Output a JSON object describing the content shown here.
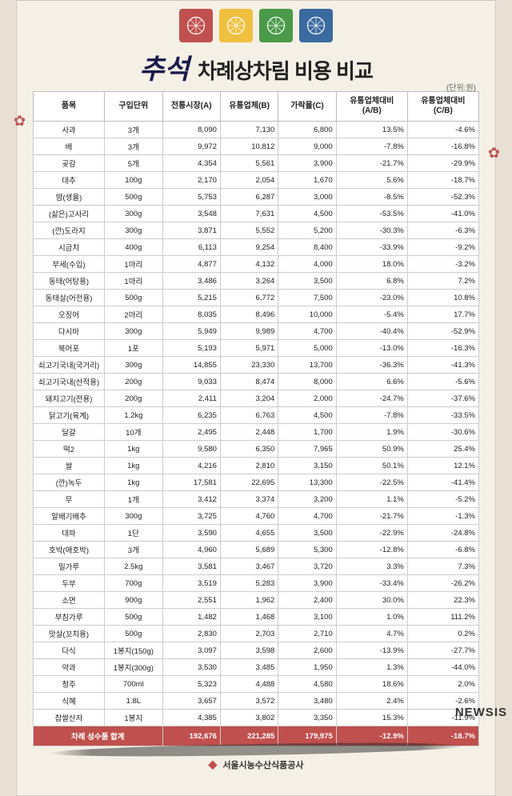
{
  "title_brush": "추석",
  "title_main": "차례상차림 비용 비교",
  "unit_note": "(단위:원)",
  "deco_colors": [
    "#c0504d",
    "#f0c040",
    "#4a9a4a",
    "#3a6aa0"
  ],
  "columns": [
    "품목",
    "구입단위",
    "전통시장(A)",
    "유통업체(B)",
    "가락몰(C)",
    "유통업체대비\n(A/B)",
    "유통업체대비\n(C/B)"
  ],
  "rows": [
    [
      "사과",
      "3개",
      "8,090",
      "7,130",
      "6,800",
      "13.5%",
      "-4.6%"
    ],
    [
      "배",
      "3개",
      "9,972",
      "10,812",
      "9,000",
      "-7.8%",
      "-16.8%"
    ],
    [
      "곶감",
      "5개",
      "4,354",
      "5,561",
      "3,900",
      "-21.7%",
      "-29.9%"
    ],
    [
      "대추",
      "100g",
      "2,170",
      "2,054",
      "1,670",
      "5.6%",
      "-18.7%"
    ],
    [
      "밤(생율)",
      "500g",
      "5,753",
      "6,287",
      "3,000",
      "-8.5%",
      "-52.3%"
    ],
    [
      "(삶은)고사리",
      "300g",
      "3,548",
      "7,631",
      "4,500",
      "-53.5%",
      "-41.0%"
    ],
    [
      "(깐)도라지",
      "300g",
      "3,871",
      "5,552",
      "5,200",
      "-30.3%",
      "-6.3%"
    ],
    [
      "시금치",
      "400g",
      "6,113",
      "9,254",
      "8,400",
      "-33.9%",
      "-9.2%"
    ],
    [
      "부세(수입)",
      "1마리",
      "4,877",
      "4,132",
      "4,000",
      "18.0%",
      "-3.2%"
    ],
    [
      "동태(어탕용)",
      "1마리",
      "3,486",
      "3,264",
      "3,500",
      "6.8%",
      "7.2%"
    ],
    [
      "동태살(어전용)",
      "500g",
      "5,215",
      "6,772",
      "7,500",
      "-23.0%",
      "10.8%"
    ],
    [
      "오징어",
      "2마리",
      "8,035",
      "8,496",
      "10,000",
      "-5.4%",
      "17.7%"
    ],
    [
      "다시마",
      "300g",
      "5,949",
      "9,989",
      "4,700",
      "-40.4%",
      "-52.9%"
    ],
    [
      "북어포",
      "1포",
      "5,193",
      "5,971",
      "5,000",
      "-13.0%",
      "-16.3%"
    ],
    [
      "쇠고기국내(국거리)",
      "300g",
      "14,855",
      "23,330",
      "13,700",
      "-36.3%",
      "-41.3%"
    ],
    [
      "쇠고기국내(산적용)",
      "200g",
      "9,033",
      "8,474",
      "8,000",
      "6.6%",
      "-5.6%"
    ],
    [
      "돼지고기(전용)",
      "200g",
      "2,411",
      "3,204",
      "2,000",
      "-24.7%",
      "-37.6%"
    ],
    [
      "닭고기(육계)",
      "1.2kg",
      "6,235",
      "6,763",
      "4,500",
      "-7.8%",
      "-33.5%"
    ],
    [
      "달걀",
      "10개",
      "2,495",
      "2,448",
      "1,700",
      "1.9%",
      "-30.6%"
    ],
    [
      "떡2",
      "1kg",
      "9,580",
      "6,350",
      "7,965",
      "50.9%",
      "25.4%"
    ],
    [
      "쌀",
      "1kg",
      "4,216",
      "2,810",
      "3,150",
      "50.1%",
      "12.1%"
    ],
    [
      "(깐)녹두",
      "1kg",
      "17,581",
      "22,695",
      "13,300",
      "-22.5%",
      "-41.4%"
    ],
    [
      "무",
      "1개",
      "3,412",
      "3,374",
      "3,200",
      "1.1%",
      "-5.2%"
    ],
    [
      "알배기배추",
      "300g",
      "3,725",
      "4,760",
      "4,700",
      "-21.7%",
      "-1.3%"
    ],
    [
      "대파",
      "1단",
      "3,590",
      "4,655",
      "3,500",
      "-22.9%",
      "-24.8%"
    ],
    [
      "호박(애호박)",
      "3개",
      "4,960",
      "5,689",
      "5,300",
      "-12.8%",
      "-6.8%"
    ],
    [
      "밀가루",
      "2.5kg",
      "3,581",
      "3,467",
      "3,720",
      "3.3%",
      "7.3%"
    ],
    [
      "두부",
      "700g",
      "3,519",
      "5,283",
      "3,900",
      "-33.4%",
      "-26.2%"
    ],
    [
      "소면",
      "900g",
      "2,551",
      "1,962",
      "2,400",
      "30.0%",
      "22.3%"
    ],
    [
      "부침가루",
      "500g",
      "1,482",
      "1,468",
      "3,100",
      "1.0%",
      "111.2%"
    ],
    [
      "맛살(꼬치용)",
      "500g",
      "2,830",
      "2,703",
      "2,710",
      "4.7%",
      "0.2%"
    ],
    [
      "다식",
      "1봉지(150g)",
      "3,097",
      "3,598",
      "2,600",
      "-13.9%",
      "-27.7%"
    ],
    [
      "약과",
      "1봉지(300g)",
      "3,530",
      "3,485",
      "1,950",
      "1.3%",
      "-44.0%"
    ],
    [
      "청주",
      "700ml",
      "5,323",
      "4,488",
      "4,580",
      "18.6%",
      "2.0%"
    ],
    [
      "식혜",
      "1.8L",
      "3,657",
      "3,572",
      "3,480",
      "2.4%",
      "-2.6%"
    ],
    [
      "찹쌀산자",
      "1봉지",
      "4,385",
      "3,802",
      "3,350",
      "15.3%",
      "-11.9%"
    ]
  ],
  "total": [
    "차례 성수품 합계",
    "",
    "192,676",
    "221,285",
    "179,975",
    "-12.9%",
    "-18.7%"
  ],
  "footer_org": "서울시농수산식품공사",
  "watermark": "NEWSIS",
  "colors": {
    "header_bg": "#ffffff",
    "total_bg": "#c0504d",
    "page_bg": "#f5f0e6",
    "outer_bg": "#e8e0d4",
    "title_brush": "#1a1a4a"
  }
}
